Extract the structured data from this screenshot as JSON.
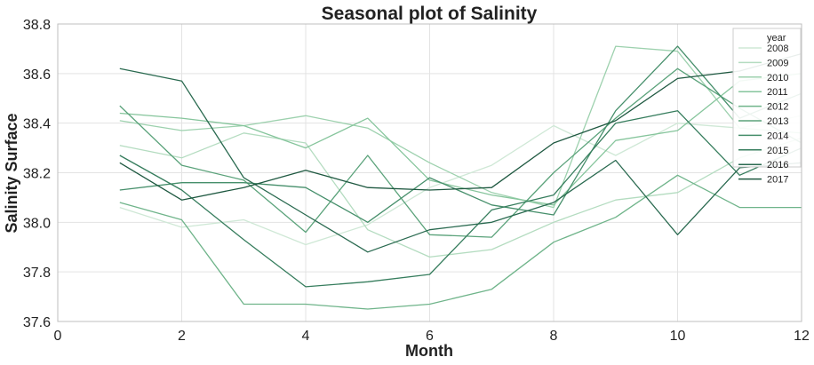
{
  "chart_data": {
    "type": "line",
    "title": "Seasonal plot of Salinity",
    "xlabel": "Month",
    "ylabel": "Salinity Surface",
    "xlim": [
      0,
      12
    ],
    "ylim": [
      37.6,
      38.8
    ],
    "x_ticks": [
      0,
      2,
      4,
      6,
      8,
      10,
      12
    ],
    "y_ticks": [
      37.6,
      37.8,
      38.0,
      38.2,
      38.4,
      38.6,
      38.8
    ],
    "x_tick_labels": [
      "0",
      "2",
      "4",
      "6",
      "8",
      "10",
      "12"
    ],
    "y_tick_labels": [
      "37.6",
      "37.8",
      "38.0",
      "38.2",
      "38.4",
      "38.6",
      "38.8"
    ],
    "grid": true,
    "legend": {
      "title": "year",
      "placement": "top-right"
    },
    "x": [
      1,
      2,
      3,
      4,
      5,
      6,
      7,
      8,
      9,
      10,
      11,
      12
    ],
    "series": [
      {
        "name": "2008",
        "color": "#cfe8d6",
        "values": [
          38.06,
          37.98,
          38.01,
          37.91,
          37.99,
          38.14,
          38.23,
          38.39,
          38.27,
          38.4,
          38.38,
          38.43
        ]
      },
      {
        "name": "2009",
        "color": "#b4dcc0",
        "values": [
          38.31,
          38.26,
          38.36,
          38.32,
          37.97,
          37.86,
          37.89,
          38.0,
          38.09,
          38.12,
          38.26,
          38.34
        ]
      },
      {
        "name": "2010",
        "color": "#9dd1ae",
        "values": [
          38.41,
          38.37,
          38.39,
          38.43,
          38.38,
          38.24,
          38.12,
          38.06,
          38.71,
          38.69,
          38.38,
          38.36
        ]
      },
      {
        "name": "2011",
        "color": "#86c59c",
        "values": [
          38.44,
          38.42,
          38.39,
          38.3,
          38.42,
          38.17,
          38.11,
          38.07,
          38.33,
          38.37,
          38.57,
          38.6
        ]
      },
      {
        "name": "2012",
        "color": "#6fb48a",
        "values": [
          38.08,
          38.01,
          37.67,
          37.67,
          37.65,
          37.67,
          37.73,
          37.92,
          38.02,
          38.19,
          38.06,
          38.06
        ]
      },
      {
        "name": "2013",
        "color": "#5aa27a",
        "values": [
          38.47,
          38.23,
          38.17,
          37.96,
          38.27,
          37.95,
          37.94,
          38.2,
          38.42,
          38.62,
          38.46,
          38.32
        ]
      },
      {
        "name": "2014",
        "color": "#468f6b",
        "values": [
          38.13,
          38.16,
          38.16,
          38.14,
          38.0,
          38.18,
          38.07,
          38.03,
          38.45,
          38.71,
          38.42,
          38.52
        ]
      },
      {
        "name": "2015",
        "color": "#367d5d",
        "values": [
          38.27,
          38.13,
          37.93,
          37.74,
          37.76,
          37.79,
          38.05,
          38.11,
          38.4,
          38.45,
          38.19,
          38.3
        ]
      },
      {
        "name": "2016",
        "color": "#2a6a50",
        "values": [
          38.62,
          38.57,
          38.18,
          38.03,
          37.88,
          37.97,
          38.0,
          38.08,
          38.25,
          37.95,
          38.22,
          38.24
        ]
      },
      {
        "name": "2017",
        "color": "#1e5840",
        "values": [
          38.24,
          38.09,
          38.14,
          38.21,
          38.14,
          38.13,
          38.14,
          38.32,
          38.41,
          38.58,
          38.61,
          38.68
        ]
      }
    ]
  }
}
